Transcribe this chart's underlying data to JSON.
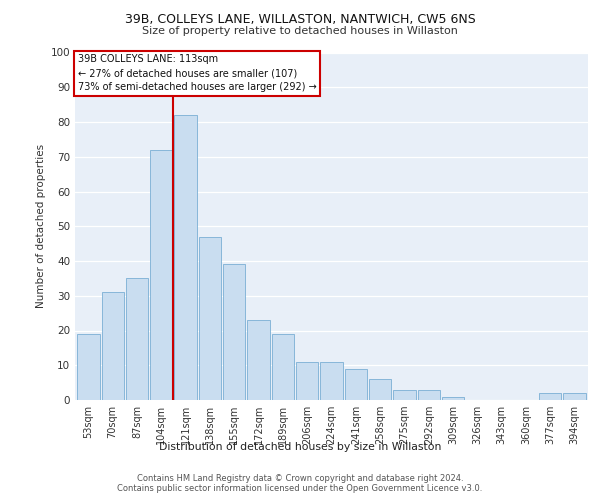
{
  "title1": "39B, COLLEYS LANE, WILLASTON, NANTWICH, CW5 6NS",
  "title2": "Size of property relative to detached houses in Willaston",
  "xlabel": "Distribution of detached houses by size in Willaston",
  "ylabel": "Number of detached properties",
  "categories": [
    "53sqm",
    "70sqm",
    "87sqm",
    "104sqm",
    "121sqm",
    "138sqm",
    "155sqm",
    "172sqm",
    "189sqm",
    "206sqm",
    "224sqm",
    "241sqm",
    "258sqm",
    "275sqm",
    "292sqm",
    "309sqm",
    "326sqm",
    "343sqm",
    "360sqm",
    "377sqm",
    "394sqm"
  ],
  "values": [
    19,
    31,
    35,
    72,
    82,
    47,
    39,
    23,
    19,
    11,
    11,
    9,
    6,
    3,
    3,
    1,
    0,
    0,
    0,
    2,
    2
  ],
  "bar_color": "#c9ddf0",
  "bar_edge_color": "#7aafd4",
  "bg_color": "#e8eff8",
  "property_line_x": 3.5,
  "annotation_title": "39B COLLEYS LANE: 113sqm",
  "annotation_line1": "← 27% of detached houses are smaller (107)",
  "annotation_line2": "73% of semi-detached houses are larger (292) →",
  "annotation_box_color": "#ffffff",
  "annotation_box_edge_color": "#cc0000",
  "vline_color": "#cc0000",
  "footer1": "Contains HM Land Registry data © Crown copyright and database right 2024.",
  "footer2": "Contains public sector information licensed under the Open Government Licence v3.0.",
  "ylim": [
    0,
    100
  ],
  "yticks": [
    0,
    10,
    20,
    30,
    40,
    50,
    60,
    70,
    80,
    90,
    100
  ]
}
